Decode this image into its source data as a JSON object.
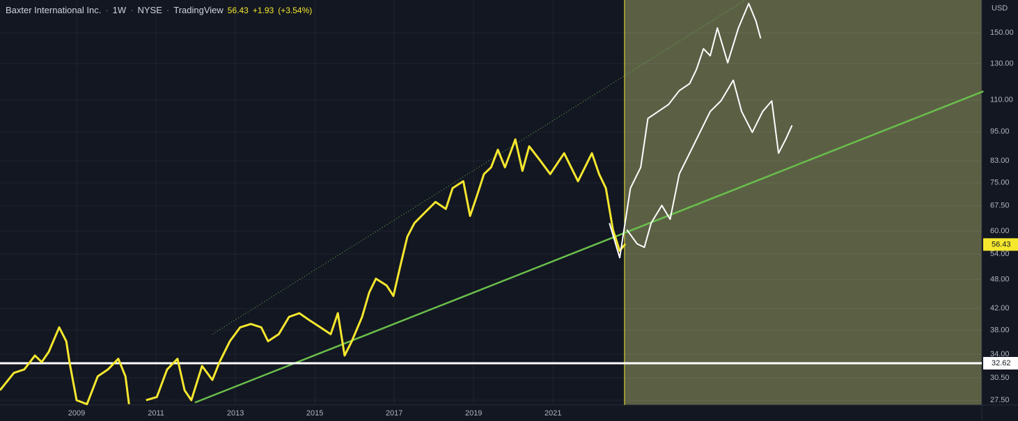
{
  "header": {
    "symbol": "Baxter International Inc.",
    "interval": "1W",
    "exchange": "NYSE",
    "source": "TradingView",
    "last": "56.43",
    "change": "+1.93",
    "change_pct": "(+3.54%)"
  },
  "chart_data": {
    "type": "line",
    "currency": "USD",
    "log_scale": true,
    "xlim": [
      2007.07,
      2031.8
    ],
    "xticks": [
      2009,
      2011,
      2013,
      2015,
      2017,
      2019,
      2021
    ],
    "ylim": [
      26.9,
      174.5
    ],
    "yticks": [
      {
        "value": 150,
        "label": "150.00"
      },
      {
        "value": 130,
        "label": "130.00"
      },
      {
        "value": 110,
        "label": "110.00"
      },
      {
        "value": 95,
        "label": "95.00"
      },
      {
        "value": 83,
        "label": "83.00"
      },
      {
        "value": 75,
        "label": "75.00"
      },
      {
        "value": 67.5,
        "label": "67.50"
      },
      {
        "value": 60,
        "label": "60.00"
      },
      {
        "value": 54,
        "label": "54.00"
      },
      {
        "value": 48,
        "label": "48.00"
      },
      {
        "value": 42,
        "label": "42.00"
      },
      {
        "value": 38,
        "label": "38.00"
      },
      {
        "value": 34,
        "label": "34.00"
      },
      {
        "value": 30.5,
        "label": "30.50"
      },
      {
        "value": 27.5,
        "label": "27.50"
      }
    ],
    "last_price": 56.43,
    "last_price_color": "#f5e72e",
    "level": 32.62,
    "level_color": "#ffffff",
    "projection_start": 2022.8,
    "projection_color": "#5b6045",
    "series": [
      {
        "color": "#f5e72e",
        "width": 3,
        "x": [
          2007.07,
          2007.42,
          2007.68,
          2007.95,
          2008.12,
          2008.3,
          2008.56,
          2008.74,
          2008.82,
          2009.0,
          2009.26,
          2009.53,
          2009.79,
          2010.05,
          2010.23,
          2010.32,
          2010.5,
          2010.75,
          2011.02,
          2011.28,
          2011.54,
          2011.72,
          2011.89,
          2012.16,
          2012.42,
          2012.6,
          2012.86,
          2013.12,
          2013.39,
          2013.65,
          2013.82,
          2014.09,
          2014.35,
          2014.61,
          2014.88,
          2015.14,
          2015.4,
          2015.58,
          2015.75,
          2015.93,
          2016.19,
          2016.37,
          2016.54,
          2016.81,
          2016.98,
          2017.16,
          2017.33,
          2017.51,
          2017.77,
          2018.04,
          2018.3,
          2018.47,
          2018.74,
          2018.91,
          2019.09,
          2019.26,
          2019.44,
          2019.61,
          2019.79,
          2020.05,
          2020.23,
          2020.4,
          2020.67,
          2020.93,
          2021.28,
          2021.63,
          2021.98,
          2022.16,
          2022.33,
          2022.51,
          2022.68,
          2022.82
        ],
        "values": [
          28.8,
          31.2,
          31.7,
          33.8,
          32.8,
          34.4,
          38.5,
          36.1,
          32.8,
          27.5,
          27.0,
          30.7,
          31.7,
          33.3,
          30.7,
          27.0,
          null,
          27.5,
          27.9,
          31.7,
          33.3,
          28.8,
          27.5,
          32.2,
          30.2,
          32.8,
          36.1,
          38.5,
          39.1,
          38.5,
          36.1,
          37.3,
          40.4,
          41.1,
          39.7,
          38.5,
          37.3,
          41.1,
          33.8,
          36.1,
          40.4,
          45.2,
          48.2,
          46.7,
          44.5,
          51.4,
          58.5,
          62.3,
          65.4,
          68.7,
          66.5,
          73.2,
          75.6,
          64.4,
          70.9,
          78.1,
          80.6,
          87.4,
          80.6,
          91.7,
          79.3,
          88.8,
          83.3,
          78.1,
          86.0,
          75.6,
          86.0,
          78.1,
          73.2,
          60.4,
          54.8,
          56.6
        ]
      },
      {
        "color": "#ffffff",
        "width": 2,
        "x": [
          2022.42,
          2022.68,
          2022.95,
          2023.21,
          2023.39,
          2023.65,
          2023.91,
          2024.18,
          2024.44,
          2024.61,
          2024.79,
          2024.96,
          2025.14,
          2025.4,
          2025.67,
          2025.93,
          2026.11,
          2026.23
        ],
        "values": [
          62.3,
          53.1,
          73.2,
          80.6,
          101.0,
          104.3,
          107.7,
          114.8,
          118.6,
          126.5,
          139.3,
          134.9,
          153.4,
          130.6,
          153.4,
          171.7,
          158.4,
          146.2
        ]
      },
      {
        "color": "#ffffff",
        "width": 2,
        "x": [
          2022.86,
          2023.12,
          2023.3,
          2023.47,
          2023.74,
          2023.95,
          2024.18,
          2024.44,
          2024.7,
          2024.96,
          2025.23,
          2025.54,
          2025.75,
          2026.02,
          2026.28,
          2026.51,
          2026.68,
          2026.86,
          2027.02
        ],
        "values": [
          60.4,
          56.6,
          55.7,
          62.3,
          67.6,
          63.4,
          78.1,
          86.0,
          94.7,
          104.3,
          109.5,
          120.5,
          104.3,
          94.7,
          104.3,
          109.5,
          86.0,
          91.7,
          97.8
        ]
      }
    ],
    "trendlines": [
      {
        "color": "#6abf4b",
        "style": "solid",
        "x": [
          2011.98,
          2031.84
        ],
        "values": [
          27.2,
          114.5
        ]
      },
      {
        "color": "#6abf4b",
        "style": "dotted",
        "x": [
          2012.42,
          2025.84
        ],
        "values": [
          37.3,
          174.5
        ]
      }
    ]
  }
}
